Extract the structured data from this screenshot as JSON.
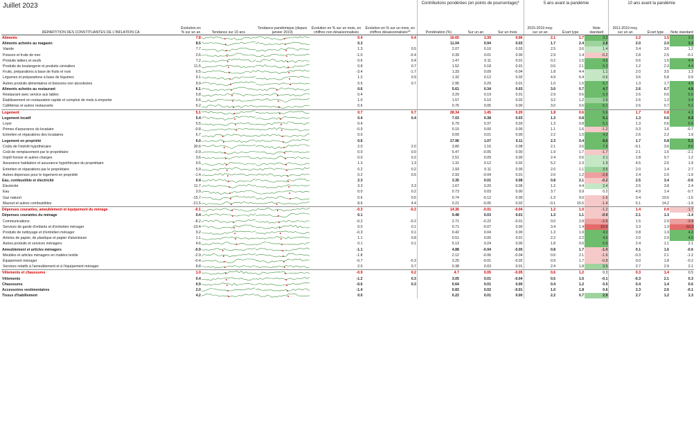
{
  "title": "Juillet 2023",
  "headers": {
    "label": "RÉPARTITION DES CONSTITUANTES DE L'INFLATION CA",
    "yoy": "Évolution en % sur un an",
    "trend10": "Tendance sur 10 ans",
    "trendpan": "Tendance pandémique (depuis janvier 2019)",
    "mom_nsa": "Évolution en % sur un mois, en chiffres non désaisonnalisés",
    "mom_sa": "Évolution en % sur un mois, en chiffres désaisonnalisés**",
    "contrib_group": "Contributions pondérées (en points de pourcentage)*",
    "weight": "Pondération (%)",
    "c_yoy": "Sur un an",
    "c_mom": "Sur un mois",
    "pre5_group": "5 ans avant la pandémie",
    "pre5_avg": "2015-2019 moy. sur un an",
    "pre5_sd": "Écart type",
    "pre5_z": "Note standard",
    "pre10_group": "10 ans avant la pandémie",
    "pre10_avg": "2011-2019 moy. sur un an",
    "pre10_sd": "Écart type",
    "pre10_z": "Note standard"
  },
  "rows": [
    {
      "l": 0,
      "n": "Aliments",
      "y": "7.8",
      "m1": "0.4",
      "m2": "0.4",
      "w": "16.65",
      "cy": "1.30",
      "cm": "0.06",
      "a5": "2.1",
      "s5": "1.7",
      "z5": "3.3",
      "z5c": "g3",
      "a10": "2.2",
      "s10": "1.5",
      "z10": "3.9",
      "z10c": "g3"
    },
    {
      "l": 1,
      "n": "Aliments achetés au magasin",
      "y": "8.5",
      "m1": "0.3",
      "m2": "",
      "w": "11.04",
      "cy": "0.94",
      "cm": "0.03",
      "a5": "1.7",
      "s5": "2.4",
      "z5": "2.8",
      "z5c": "g2",
      "a10": "2.0",
      "s10": "2.0",
      "z10": "3.2",
      "z10c": "g3"
    },
    {
      "l": 2,
      "n": "Viande",
      "y": "7.7",
      "m1": "1.3",
      "m2": "0.5",
      "w": "2.07",
      "cy": "0.16",
      "cm": "0.03",
      "a5": "2.5",
      "s5": "3.6",
      "z5": "1.4",
      "z5c": "g1",
      "a10": "3.4",
      "s10": "3.6",
      "z10": "1.2",
      "z10c": ""
    },
    {
      "l": 2,
      "n": "Poisson et fruits de mer",
      "y": "2.6",
      "m1": "-1.0",
      "m2": "-0.4",
      "w": "0.39",
      "cy": "0.01",
      "cm": "0.00",
      "a5": "2.9",
      "s5": "1.4",
      "z5": "-0.2",
      "z5c": "r1",
      "a10": "2.8",
      "s10": "2.5",
      "z10": "-0.1",
      "z10c": ""
    },
    {
      "l": 2,
      "n": "Produits laitiers et oeufs",
      "y": "7.2",
      "m1": "0.6",
      "m2": "0.4",
      "w": "1.47",
      "cy": "0.11",
      "cm": "0.01",
      "a5": "0.2",
      "s5": "1.5",
      "z5": "4.5",
      "z5c": "g3",
      "a10": "0.6",
      "s10": "1.5",
      "z10": "4.4",
      "z10c": "g3"
    },
    {
      "l": 2,
      "n": "Produits de boulangerie et produits céréaliers",
      "y": "11.5",
      "m1": "0.8",
      "m2": "0.7",
      "w": "1.52",
      "cy": "0.18",
      "cm": "0.01",
      "a5": "0.5",
      "s5": "2.1",
      "z5": "5.3",
      "z5c": "g3",
      "a10": "1.2",
      "s10": "2.3",
      "z10": "4.4",
      "z10c": "g3"
    },
    {
      "l": 2,
      "n": "Fruits, préparations à base de fruits et noix",
      "y": "6.5",
      "m1": "-3.4",
      "m2": "-1.7",
      "w": "1.33",
      "cy": "0.09",
      "cm": "-0.04",
      "a5": "1.8",
      "s5": "4.4",
      "z5": "1.1",
      "z5c": "g1",
      "a10": "2.0",
      "s10": "3.5",
      "z10": "1.3",
      "z10c": ""
    },
    {
      "l": 2,
      "n": "Légumes et préparations à base de légumes",
      "y": "9.1",
      "m1": "1.2",
      "m2": "0.9",
      "w": "1.32",
      "cy": "0.12",
      "cm": "0.02",
      "a5": "4.9",
      "s5": "6.4",
      "z5": "0.6",
      "z5c": "g1",
      "a10": "3.6",
      "s10": "5.8",
      "z10": "0.9",
      "z10c": ""
    },
    {
      "l": 2,
      "n": "Autres produits alimentaires et boissons non alcoolisées",
      "y": "9.9",
      "m1": "0.5",
      "m2": "0.7",
      "w": "2.95",
      "cy": "0.29",
      "cm": "0.01",
      "a5": "1.0",
      "s5": "1.5",
      "z5": "5.7",
      "z5c": "g3",
      "a10": "1.3",
      "s10": "1.7",
      "z10": "4.9",
      "z10c": "g3"
    },
    {
      "l": 1,
      "n": "Aliments achetés au restaurant",
      "y": "6.1",
      "m1": "0.6",
      "m2": "",
      "w": "5.61",
      "cy": "0.34",
      "cm": "0.03",
      "a5": "3.0",
      "s5": "0.7",
      "z5": "4.7",
      "z5c": "g3",
      "a10": "2.6",
      "s10": "0.7",
      "z10": "4.8",
      "z10c": "g3"
    },
    {
      "l": 2,
      "n": "Restaurant avec service aux tables",
      "y": "5.8",
      "m1": "0.4",
      "m2": "",
      "w": "3.29",
      "cy": "0.19",
      "cm": "0.01",
      "a5": "2.9",
      "s5": "0.6",
      "z5": "5.3",
      "z5c": "g3",
      "a10": "2.6",
      "s10": "0.6",
      "z10": "5.0",
      "z10c": "g3"
    },
    {
      "l": 2,
      "n": "Établissement en restauration rapide et comptoir de mets à emporter",
      "y": "6.6",
      "m1": "1.0",
      "m2": "",
      "w": "1.57",
      "cy": "0.10",
      "cm": "0.02",
      "a5": "3.2",
      "s5": "1.2",
      "z5": "2.8",
      "z5c": "g2",
      "a10": "2.6",
      "s10": "1.2",
      "z10": "3.4",
      "z10c": "g3"
    },
    {
      "l": 2,
      "n": "Cafétérias et autres restaurants",
      "y": "6.2",
      "m1": "0.6",
      "m2": "",
      "w": "0.76",
      "cy": "0.05",
      "cm": "0.00",
      "a5": "3.0",
      "s5": "0.6",
      "z5": "5.1",
      "z5c": "g3",
      "a10": "2.6",
      "s10": "0.7",
      "z10": "5.1",
      "z10c": "g3"
    },
    {
      "l": 0,
      "n": "Logement",
      "y": "5.1",
      "m1": "0.7",
      "m2": "0.7",
      "w": "28.34",
      "cy": "1.45",
      "cm": "0.20",
      "a5": "1.8",
      "s5": "0.6",
      "z5": "5.6",
      "z5c": "g3",
      "a10": "1.7",
      "s10": "0.8",
      "z10": "4.3",
      "z10c": "g3",
      "sec": true
    },
    {
      "l": 1,
      "n": "Logement locatif",
      "y": "5.4",
      "m1": "0.4",
      "m2": "0.4",
      "w": "7.03",
      "cy": "0.38",
      "cm": "0.03",
      "a5": "1.3",
      "s5": "0.8",
      "z5": "5.1",
      "z5c": "g3",
      "a10": "1.3",
      "s10": "0.6",
      "z10": "6.9",
      "z10c": "g3"
    },
    {
      "l": 2,
      "n": "Loyer",
      "y": "5.5",
      "m1": "0.4",
      "m2": "",
      "w": "6.79",
      "cy": "0.37",
      "cm": "0.03",
      "a5": "1.3",
      "s5": "0.8",
      "z5": "5.1",
      "z5c": "g3",
      "a10": "1.3",
      "s10": "0.6",
      "z10": "6.9",
      "z10c": "g3"
    },
    {
      "l": 2,
      "n": "Primes d'assurance du locataire",
      "y": "-0.8",
      "m1": "-0.9",
      "m2": "",
      "w": "0.15",
      "cy": "0.00",
      "cm": "0.00",
      "a5": "1.1",
      "s5": "1.6",
      "z5": "-1.2",
      "z5c": "r1",
      "a10": "0.3",
      "s10": "1.6",
      "z10": "-0.7",
      "z10c": ""
    },
    {
      "l": 2,
      "n": "Entretien et réparations des locataires",
      "y": "6.7",
      "m1": "0.0",
      "m2": "",
      "w": "0.09",
      "cy": "0.01",
      "cm": "0.00",
      "a5": "2.2",
      "s5": "1.0",
      "z5": "4.3",
      "z5c": "g3",
      "a10": "2.6",
      "s10": "2.2",
      "z10": "1.9",
      "z10c": ""
    },
    {
      "l": 1,
      "n": "Logement en propriété",
      "y": "6.0",
      "m1": "0.6",
      "m2": "",
      "w": "17.96",
      "cy": "1.07",
      "cm": "0.11",
      "a5": "2.3",
      "s5": "0.4",
      "z5": "8.6",
      "z5c": "g3",
      "a10": "1.7",
      "s10": "0.8",
      "z10": "5.1",
      "z10c": "g3"
    },
    {
      "l": 2,
      "n": "Coûts de l'intérêt hypothécaire",
      "y": "30.6",
      "m1": "2.0",
      "m2": "2.0",
      "w": "3.80",
      "cy": "1.16",
      "cm": "0.08",
      "a5": "2.1",
      "s5": "3.6",
      "z5": "7.9",
      "z5c": "g3",
      "a10": "-0.1",
      "s10": "3.6",
      "z10": "8.6",
      "z10c": "g3"
    },
    {
      "l": 2,
      "n": "Coût de remplacement par le propriétaire",
      "y": "-0.9",
      "m1": "0.0",
      "m2": "0.0",
      "w": "5.47",
      "cy": "-0.05",
      "cm": "0.00",
      "a5": "1.9",
      "s5": "1.7",
      "z5": "-1.7",
      "z5c": "r1",
      "a10": "2.1",
      "s10": "1.5",
      "z10": "-2.1",
      "z10c": ""
    },
    {
      "l": 2,
      "n": "Impôt foncier et autres charges",
      "y": "3.6",
      "m1": "0.0",
      "m2": "0.2",
      "w": "2.51",
      "cy": "0.09",
      "cm": "0.00",
      "a5": "2.4",
      "s5": "0.6",
      "z5": "2.1",
      "z5c": "g1",
      "a10": "2.8",
      "s10": "0.7",
      "z10": "1.2",
      "z10c": ""
    },
    {
      "l": 2,
      "n": "Assurance habitation et assurance hypothécaire du propriétaire",
      "y": "9.5",
      "m1": "1.3",
      "m2": "1.3",
      "w": "1.31",
      "cy": "0.12",
      "cm": "0.02",
      "a5": "5.2",
      "s5": "2.3",
      "z5": "1.9",
      "z5c": "g1",
      "a10": "4.5",
      "s10": "2.6",
      "z10": "1.9",
      "z10c": ""
    },
    {
      "l": 2,
      "n": "Entretien et réparations par le propriétaire",
      "y": "5.9",
      "m1": "0.2",
      "m2": "0.2",
      "w": "1.93",
      "cy": "0.11",
      "cm": "0.00",
      "a5": "2.0",
      "s5": "1.1",
      "z5": "3.5",
      "z5c": "g2",
      "a10": "2.0",
      "s10": "1.4",
      "z10": "2.7",
      "z10c": ""
    },
    {
      "l": 2,
      "n": "Autres dépenses pour le logement en propriété",
      "y": "-1.4",
      "m1": "0.2",
      "m2": "0.5",
      "w": "2.93",
      "cy": "-0.04",
      "cm": "0.01",
      "a5": "2.0",
      "s5": "1.2",
      "z5": "-2.8",
      "z5c": "r2",
      "a10": "2.4",
      "s10": "2.0",
      "z10": "-1.9",
      "z10c": ""
    },
    {
      "l": 1,
      "n": "Eau, combustible et électricité",
      "y": "0.4",
      "m1": "2.3",
      "m2": "",
      "w": "3.35",
      "cy": "0.01",
      "cm": "0.08",
      "a5": "0.8",
      "s5": "2.1",
      "z5": "-0.2",
      "z5c": "r1",
      "a10": "2.5",
      "s10": "3.4",
      "z10": "-0.6",
      "z10c": ""
    },
    {
      "l": 2,
      "n": "Électricité",
      "y": "11.7",
      "m1": "3.3",
      "m2": "3.3",
      "w": "1.67",
      "cy": "0.20",
      "cm": "0.06",
      "a5": "1.2",
      "s5": "4.4",
      "z5": "2.4",
      "z5c": "g1",
      "a10": "2.5",
      "s10": "3.8",
      "z10": "2.4",
      "z10c": ""
    },
    {
      "l": 2,
      "n": "Eau",
      "y": "3.9",
      "m1": "0.0",
      "m2": "0.2",
      "w": "0.73",
      "cy": "0.03",
      "cm": "0.00",
      "a5": "3.7",
      "s5": "0.9",
      "z5": "0.2",
      "z5c": "",
      "a10": "4.9",
      "s10": "1.4",
      "z10": "-0.7",
      "z10c": ""
    },
    {
      "l": 2,
      "n": "Gaz naturel",
      "y": "-15.7",
      "m1": "0.6",
      "m2": "0.5",
      "w": "0.74",
      "cy": "-0.12",
      "cm": "0.00",
      "a5": "-1.3",
      "s5": "9.0",
      "z5": "-1.6",
      "z5c": "r1",
      "a10": "0.4",
      "s10": "10.6",
      "z10": "-1.5",
      "z10c": ""
    },
    {
      "l": 2,
      "n": "Mazout et autres combustibles",
      "y": "-21.5",
      "m1": "8.6",
      "m2": "4.4",
      "w": "0.21",
      "cy": "-0.05",
      "cm": "0.02",
      "a5": "-0.1",
      "s5": "15.5",
      "z5": "-1.4",
      "z5c": "r1",
      "a10": "5.1",
      "s10": "14.2",
      "z10": "-1.9",
      "z10c": ""
    },
    {
      "l": 0,
      "n": "Dépenses courantes, ameublement et équipement du ménage",
      "y": "-0.1",
      "m1": "-0.3",
      "m2": "-0.2",
      "w": "14.36",
      "cy": "-0.01",
      "cm": "-0.04",
      "a5": "1.2",
      "s5": "1.0",
      "z5": "-1.2",
      "z5c": "r1",
      "a10": "1.4",
      "s10": "0.9",
      "z10": "-1.7",
      "z10c": "r1",
      "sec": true
    },
    {
      "l": 1,
      "n": "Dépenses courantes du ménage",
      "y": "0.4",
      "m1": "0.1",
      "m2": "",
      "w": "9.48",
      "cy": "0.03",
      "cm": "0.01",
      "a5": "1.3",
      "s5": "1.1",
      "z5": "-0.9",
      "z5c": "r1",
      "a10": "2.1",
      "s10": "1.3",
      "z10": "-1.4",
      "z10c": ""
    },
    {
      "l": 2,
      "n": "Communications",
      "y": "-8.2",
      "m1": "-0.2",
      "m2": "-0.2",
      "w": "2.71",
      "cy": "-0.22",
      "cm": "-0.01",
      "a5": "0.0",
      "s5": "2.8",
      "z5": "-2.9",
      "z5c": "r2",
      "a10": "1.5",
      "s10": "2.9",
      "z10": "-3.4",
      "z10c": "r2"
    },
    {
      "l": 2,
      "n": "Services de garde d'enfants et d'entretien ménager",
      "y": "-10.4",
      "m1": "0.0",
      "m2": "0.1",
      "w": "0.71",
      "cy": "-0.07",
      "cm": "0.00",
      "a5": "3.4",
      "s5": "1.4",
      "z5": "-10.0",
      "z5c": "r3",
      "a10": "3.3",
      "s10": "1.3",
      "z10": "-10.3",
      "z10c": "r3"
    },
    {
      "l": 2,
      "n": "Produits de nettoyage et d'entretien ménager",
      "y": "9.2",
      "m1": "-0.3",
      "m2": "0.1",
      "w": "0.42",
      "cy": "0.04",
      "cm": "0.00",
      "a5": "1.3",
      "s5": "1.9",
      "z5": "4.2",
      "z5c": "g3",
      "a10": "0.8",
      "s10": "1.9",
      "z10": "4.3",
      "z10c": "g3"
    },
    {
      "l": 2,
      "n": "Articles de papier, de plastique et papier d'aluminium",
      "y": "1.1",
      "m1": "1.1",
      "m2": "0.8",
      "w": "0.51",
      "cy": "0.06",
      "cm": "0.01",
      "a5": "2.2",
      "s5": "2.2",
      "z5": "4.0",
      "z5c": "g3",
      "a10": "2.0",
      "s10": "2.0",
      "z10": "4.6",
      "z10c": "g3"
    },
    {
      "l": 2,
      "n": "Autres produits et services ménagers",
      "y": "4.6",
      "m1": "0.1",
      "m2": "0.1",
      "w": "5.13",
      "cy": "0.24",
      "cm": "0.00",
      "a5": "1.8",
      "s5": "0.5",
      "z5": "5.9",
      "z5c": "g3",
      "a10": "2.4",
      "s10": "1.1",
      "z10": "2.1",
      "z10c": ""
    },
    {
      "l": 1,
      "n": "Ameublement et articles ménagers",
      "y": "-0.9",
      "m1": "-1.1",
      "m2": "",
      "w": "4.88",
      "cy": "-0.04",
      "cm": "-0.05",
      "a5": "0.8",
      "s5": "1.7",
      "z5": "-1.0",
      "z5c": "r1",
      "a10": "0.1",
      "s10": "1.6",
      "z10": "-0.6",
      "z10c": ""
    },
    {
      "l": 2,
      "n": "Meubles et articles ménagers en matière textile",
      "y": "-2.9",
      "m1": "-1.8",
      "m2": "",
      "w": "2.12",
      "cy": "-0.06",
      "cm": "-0.04",
      "a5": "0.6",
      "s5": "2.1",
      "z5": "-1.6",
      "z5c": "r1",
      "a10": "-0.3",
      "s10": "2.1",
      "z10": "-1.2",
      "z10c": ""
    },
    {
      "l": 2,
      "n": "Équipement ménager",
      "y": "-0.4",
      "m1": "-0.7",
      "m2": "-0.3",
      "w": "2.25",
      "cy": "-0.01",
      "cm": "-0.02",
      "a5": "0.9",
      "s5": "1.7",
      "z5": "-0.8",
      "z5c": "r1",
      "a10": "0.0",
      "s10": "1.8",
      "z10": "-0.2",
      "z10c": ""
    },
    {
      "l": 2,
      "n": "Services relatifs à l'ameublement et à l'équipement ménager",
      "y": "8.8",
      "m1": "2.0",
      "m2": "0.7",
      "w": "0.38",
      "cy": "0.03",
      "cm": "0.01",
      "a5": "2.4",
      "s5": "1.8",
      "z5": "3.5",
      "z5c": "g2",
      "a10": "2.7",
      "s10": "2.9",
      "z10": "2.1",
      "z10c": ""
    },
    {
      "l": 0,
      "n": "Vêtements et chaussures",
      "y": "1.0",
      "m1": "-0.9",
      "m2": "0.2",
      "w": "4.7",
      "cy": "0.05",
      "cm": "-0.05",
      "a5": "0.6",
      "s5": "1.2",
      "z5": "0.3",
      "z5c": "",
      "a10": "0.3",
      "s10": "1.4",
      "z10": "0.5",
      "z10c": "",
      "sec": true
    },
    {
      "l": 1,
      "n": "Vêtements",
      "y": "0.4",
      "m1": "-1.2",
      "m2": "0.3",
      "w": "3.05",
      "cy": "0.01",
      "cm": "-0.04",
      "a5": "0.5",
      "s5": "1.6",
      "z5": "-0.1",
      "z5c": "",
      "a10": "-0.3",
      "s10": "2.1",
      "z10": "0.3",
      "z10c": ""
    },
    {
      "l": 1,
      "n": "Chaussures",
      "y": "0.9",
      "m1": "-0.6",
      "m2": "0.3",
      "w": "0.64",
      "cy": "0.01",
      "cm": "0.00",
      "a5": "0.4",
      "s5": "1.2",
      "z5": "0.5",
      "z5c": "",
      "a10": "0.4",
      "s10": "1.4",
      "z10": "0.6",
      "z10c": ""
    },
    {
      "l": 1,
      "n": "Accessoires vestimentaires",
      "y": "2.0",
      "m1": "-1.4",
      "m2": "",
      "w": "0.83",
      "cy": "0.02",
      "cm": "-0.01",
      "a5": "1.0",
      "s5": "1.8",
      "z5": "0.6",
      "z5c": "",
      "a10": "2.3",
      "s10": "2.6",
      "z10": "-0.1",
      "z10c": ""
    },
    {
      "l": 1,
      "n": "Tissus d'habillement",
      "y": "4.2",
      "m1": "0.0",
      "m2": "",
      "w": "0.22",
      "cy": "0.01",
      "cm": "0.00",
      "a5": "2.2",
      "s5": "0.7",
      "z5": "2.9",
      "z5c": "g2",
      "a10": "2.7",
      "s10": "1.2",
      "z10": "1.3",
      "z10c": ""
    }
  ]
}
